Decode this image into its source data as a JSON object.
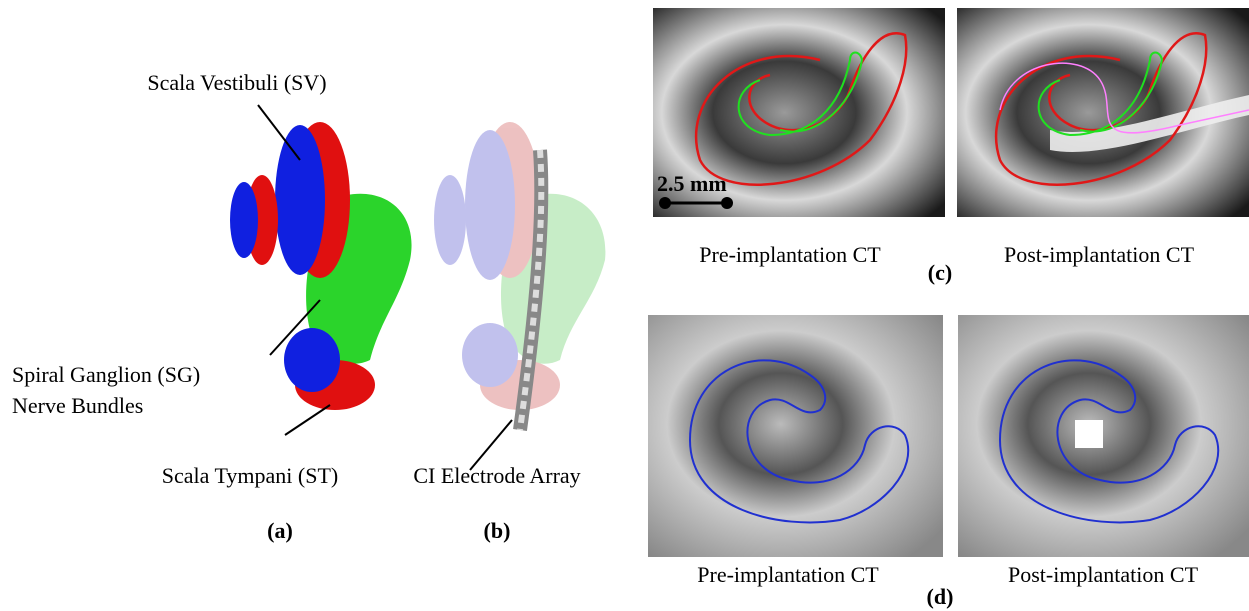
{
  "panels": {
    "a": {
      "label": "(a)",
      "labels": [
        "Scala Vestibuli (SV)",
        "Spiral Ganglion (SG)",
        "Nerve Bundles",
        "Scala Tympani (ST)"
      ]
    },
    "b": {
      "label": "(b)",
      "labels": [
        "CI Electrode Array"
      ]
    },
    "c": {
      "label": "(c)",
      "scale_bar": "2.5 mm",
      "captions": [
        "Pre-implantation CT",
        "Post-implantation CT"
      ]
    },
    "d": {
      "label": "(d)",
      "captions": [
        "Pre-implantation CT",
        "Post-implantation CT"
      ]
    }
  }
}
